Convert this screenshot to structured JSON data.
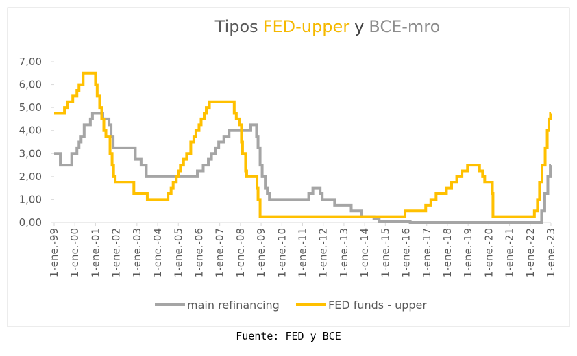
{
  "chart_data": {
    "type": "line",
    "title": [
      "Tipos",
      "FED-upper",
      "y",
      "BCE-mro"
    ],
    "title_colors": [
      "#595959",
      "#f5b800",
      "#404040",
      "#8c8c8c"
    ],
    "source": "Fuente: FED y BCE",
    "xlim": [
      1999,
      2023
    ],
    "xticks": [
      {
        "value": 1999,
        "label": "1-ene.-99"
      },
      {
        "value": 2000,
        "label": "1-ene.-00"
      },
      {
        "value": 2001,
        "label": "1-ene.-01"
      },
      {
        "value": 2002,
        "label": "1-ene.-02"
      },
      {
        "value": 2003,
        "label": "1-ene.-03"
      },
      {
        "value": 2004,
        "label": "1-ene.-04"
      },
      {
        "value": 2005,
        "label": "1-ene.-05"
      },
      {
        "value": 2006,
        "label": "1-ene.-06"
      },
      {
        "value": 2007,
        "label": "1-ene.-07"
      },
      {
        "value": 2008,
        "label": "1-ene.-08"
      },
      {
        "value": 2009,
        "label": "1-ene.-09"
      },
      {
        "value": 2010,
        "label": "1-ene.-10"
      },
      {
        "value": 2011,
        "label": "1-ene.-11"
      },
      {
        "value": 2012,
        "label": "1-ene.-12"
      },
      {
        "value": 2013,
        "label": "1-ene.-13"
      },
      {
        "value": 2014,
        "label": "1-ene.-14"
      },
      {
        "value": 2015,
        "label": "1-ene.-15"
      },
      {
        "value": 2016,
        "label": "1-ene.-16"
      },
      {
        "value": 2017,
        "label": "1-ene.-17"
      },
      {
        "value": 2018,
        "label": "1-ene.-18"
      },
      {
        "value": 2019,
        "label": "1-ene.-19"
      },
      {
        "value": 2020,
        "label": "1-ene.-20"
      },
      {
        "value": 2021,
        "label": "1-ene.-21"
      },
      {
        "value": 2022,
        "label": "1-ene.-22"
      },
      {
        "value": 2023,
        "label": "1-ene.-23"
      }
    ],
    "ylim": [
      0,
      7
    ],
    "yticks": [
      {
        "value": 0,
        "label": "0,00"
      },
      {
        "value": 1,
        "label": "1,00"
      },
      {
        "value": 2,
        "label": "2,00"
      },
      {
        "value": 3,
        "label": "3,00"
      },
      {
        "value": 4,
        "label": "4,00"
      },
      {
        "value": 5,
        "label": "5,00"
      },
      {
        "value": 6,
        "label": "6,00"
      },
      {
        "value": 7,
        "label": "7,00"
      }
    ],
    "step": true,
    "series": [
      {
        "name": "main refinancing",
        "color": "#a5a5a5",
        "x": [
          1999.0,
          1999.3,
          1999.85,
          2000.1,
          2000.2,
          2000.3,
          2000.45,
          2000.75,
          2000.85,
          2001.35,
          2001.65,
          2001.75,
          2001.85,
          2002.92,
          2003.2,
          2003.45,
          2005.92,
          2006.2,
          2006.45,
          2006.6,
          2006.8,
          2006.95,
          2007.2,
          2007.45,
          2008.5,
          2008.78,
          2008.85,
          2008.95,
          2009.05,
          2009.2,
          2009.3,
          2009.4,
          2011.3,
          2011.5,
          2011.85,
          2011.95,
          2012.55,
          2013.35,
          2013.85,
          2014.45,
          2014.7,
          2016.2,
          2022.55,
          2022.7,
          2022.85,
          2022.97
        ],
        "values": [
          3.0,
          2.5,
          3.0,
          3.25,
          3.5,
          3.75,
          4.25,
          4.5,
          4.75,
          4.5,
          4.25,
          3.75,
          3.25,
          2.75,
          2.5,
          2.0,
          2.25,
          2.5,
          2.75,
          3.0,
          3.25,
          3.5,
          3.75,
          4.0,
          4.25,
          3.75,
          3.25,
          2.5,
          2.0,
          1.5,
          1.25,
          1.0,
          1.25,
          1.5,
          1.25,
          1.0,
          0.75,
          0.5,
          0.25,
          0.15,
          0.05,
          0.0,
          0.5,
          1.25,
          2.0,
          2.5
        ]
      },
      {
        "name": "FED funds - upper",
        "color": "#ffc000",
        "x": [
          1999.0,
          1999.5,
          1999.65,
          1999.9,
          2000.1,
          2000.2,
          2000.4,
          2001.0,
          2001.08,
          2001.2,
          2001.3,
          2001.4,
          2001.5,
          2001.7,
          2001.8,
          2001.87,
          2001.95,
          2002.85,
          2003.5,
          2004.5,
          2004.65,
          2004.75,
          2004.9,
          2005.0,
          2005.1,
          2005.25,
          2005.4,
          2005.6,
          2005.75,
          2005.85,
          2006.0,
          2006.1,
          2006.25,
          2006.35,
          2006.5,
          2007.7,
          2007.8,
          2007.95,
          2008.05,
          2008.1,
          2008.25,
          2008.3,
          2008.8,
          2008.85,
          2008.95,
          2015.95,
          2016.95,
          2017.2,
          2017.45,
          2017.95,
          2018.2,
          2018.45,
          2018.7,
          2018.97,
          2019.55,
          2019.7,
          2019.8,
          2020.17,
          2020.2,
          2022.2,
          2022.35,
          2022.45,
          2022.57,
          2022.72,
          2022.82,
          2022.9,
          2022.98
        ],
        "values": [
          4.75,
          5.0,
          5.25,
          5.5,
          5.75,
          6.0,
          6.5,
          6.0,
          5.5,
          5.0,
          4.5,
          4.0,
          3.75,
          3.0,
          2.5,
          2.0,
          1.75,
          1.25,
          1.0,
          1.25,
          1.5,
          1.75,
          2.0,
          2.25,
          2.5,
          2.75,
          3.0,
          3.5,
          3.75,
          4.0,
          4.25,
          4.5,
          4.75,
          5.0,
          5.25,
          4.75,
          4.5,
          4.25,
          3.5,
          3.0,
          2.25,
          2.0,
          1.5,
          1.0,
          0.25,
          0.5,
          0.75,
          1.0,
          1.25,
          1.5,
          1.75,
          2.0,
          2.25,
          2.5,
          2.25,
          2.0,
          1.75,
          1.25,
          0.25,
          0.5,
          1.0,
          1.75,
          2.5,
          3.25,
          4.0,
          4.5,
          4.75
        ]
      }
    ]
  }
}
